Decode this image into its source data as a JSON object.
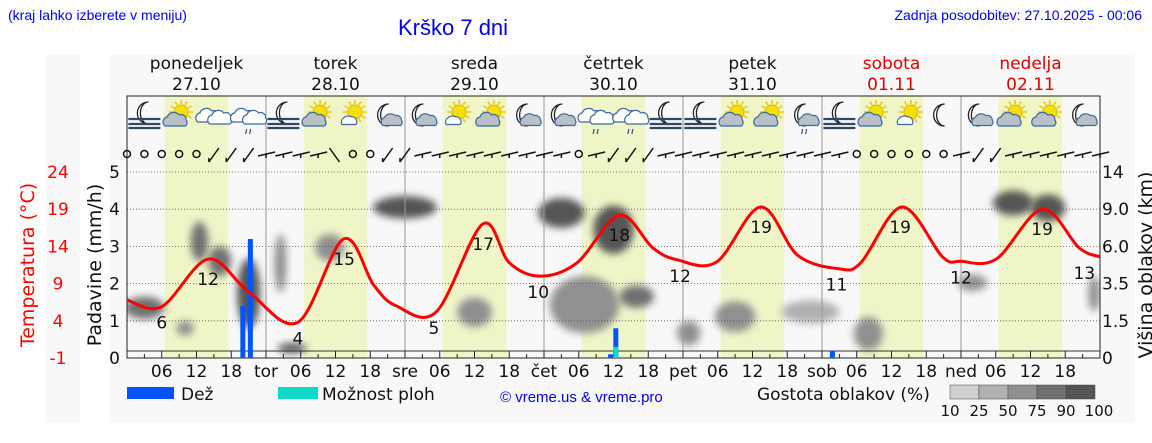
{
  "header": {
    "hint": "(kraj lahko izberete v meniju)",
    "title": "Krško 7 dni",
    "updated": "Zadnja posodobitev: 27.10.2025 - 00:06"
  },
  "days": [
    {
      "name": "ponedeljek",
      "date": "27.10",
      "weekend": false,
      "abbr": ""
    },
    {
      "name": "torek",
      "date": "28.10",
      "weekend": false,
      "abbr": "tor"
    },
    {
      "name": "sreda",
      "date": "29.10",
      "weekend": false,
      "abbr": "sre"
    },
    {
      "name": "četrtek",
      "date": "30.10",
      "weekend": false,
      "abbr": "čet"
    },
    {
      "name": "petek",
      "date": "31.10",
      "weekend": false,
      "abbr": "pet"
    },
    {
      "name": "sobota",
      "date": "01.11",
      "weekend": true,
      "abbr": "sob"
    },
    {
      "name": "nedelja",
      "date": "02.11",
      "weekend": true,
      "abbr": "ned"
    }
  ],
  "weather_icons": [
    "fog-night",
    "sun-cloud",
    "cloudy",
    "cloud-rain",
    "fog-night",
    "sun-cloud",
    "sun-small-cloud",
    "moon-cloud",
    "moon-cloud",
    "sun-small-cloud",
    "sun-cloud",
    "moon-cloud",
    "moon-cloud",
    "cloud-rain",
    "cloud-rain",
    "fog-night",
    "fog-night",
    "sun-cloud",
    "sun-cloud",
    "moon-cloud-rain",
    "fog-night",
    "sun-cloud",
    "sun-small-cloud",
    "moon",
    "moon-cloud",
    "sun-cloud",
    "sun-cloud",
    "moon-cloud"
  ],
  "wind": "cccccbbbwwwwnccbbwwwwwwwwwcwbbbwwwwwwwwwwwccccccwbbwwwwwwccbbbbbbbbbbbbbbbbbbbbbbb",
  "colors": {
    "temp": "#ff0000",
    "rain": "#0055ff",
    "showers": "#10d8c8",
    "day": "#f0f5c8",
    "weekend": "#dd0000",
    "link": "#0000ee"
  },
  "chart_data": {
    "type": "line",
    "title": "Krško 7 dni",
    "x_unit": "hours since 27.10 00:00",
    "xlim": [
      0,
      168
    ],
    "x_tick_labels": [
      "06",
      "12",
      "18"
    ],
    "y_left": {
      "label": "Padavine (mm/h)",
      "ticks": [
        "0",
        "1",
        "2",
        "3",
        "4",
        "5"
      ],
      "ylim": [
        0,
        5
      ]
    },
    "y_temp": {
      "label": "Temperatura (°C)",
      "ticks": [
        "-1",
        "4",
        "9",
        "14",
        "19",
        "24"
      ],
      "ylim": [
        -1,
        24
      ]
    },
    "y_right": {
      "label": "Višina oblakov (km)",
      "ticks": [
        "0",
        "1.5",
        "3.5",
        "6.0",
        "9.0",
        "14"
      ]
    },
    "temperature": {
      "x": [
        0,
        6,
        14,
        21,
        29.5,
        37.4,
        42.6,
        46.5,
        53.4,
        61.4,
        66,
        71.3,
        77.7,
        85,
        90.8,
        95,
        101.8,
        109.4,
        115.8,
        122.9,
        126.7,
        133.8,
        140.8,
        144,
        150.1,
        158,
        164.4,
        168
      ],
      "y": [
        6.8,
        5.9,
        12.3,
        7.9,
        3.8,
        15,
        8.8,
        6,
        5.2,
        17,
        11.8,
        10,
        11.8,
        18.2,
        13.8,
        12.2,
        11.9,
        19.3,
        12.8,
        11,
        11.8,
        19.3,
        12.6,
        12,
        12.3,
        19,
        13.8,
        12.6
      ]
    },
    "temp_labels": [
      {
        "x": 6,
        "v": "6"
      },
      {
        "x": 14,
        "v": "12"
      },
      {
        "x": 29.5,
        "v": "4"
      },
      {
        "x": 37.5,
        "v": "15"
      },
      {
        "x": 53,
        "v": "5"
      },
      {
        "x": 61.5,
        "v": "17"
      },
      {
        "x": 71,
        "v": "10"
      },
      {
        "x": 85,
        "v": "18"
      },
      {
        "x": 95.5,
        "v": "12"
      },
      {
        "x": 109.5,
        "v": "19"
      },
      {
        "x": 122.5,
        "v": "11"
      },
      {
        "x": 133.5,
        "v": "19"
      },
      {
        "x": 144,
        "v": "12"
      },
      {
        "x": 158,
        "v": "19"
      },
      {
        "x": 167,
        "v": "13"
      }
    ],
    "rain": [
      {
        "x": 20,
        "v": 1.4
      },
      {
        "x": 21.3,
        "v": 3.2
      },
      {
        "x": 83.5,
        "v": 0.1
      },
      {
        "x": 84.4,
        "v": 0.8
      },
      {
        "x": 121.8,
        "v": 0.2
      }
    ],
    "showers": [
      {
        "x": 84.4,
        "v": 0.3
      }
    ],
    "clouds": [
      {
        "x": 3,
        "km": 2.2,
        "w": 7,
        "hkm": 1.2,
        "d": 75
      },
      {
        "x": 10,
        "km": 1.2,
        "w": 3,
        "hkm": 0.6,
        "d": 50
      },
      {
        "x": 12.5,
        "km": 6.5,
        "w": 3,
        "hkm": 3,
        "d": 75
      },
      {
        "x": 16,
        "km": 5,
        "w": 4,
        "hkm": 2,
        "d": 75
      },
      {
        "x": 21,
        "km": 3.2,
        "w": 4,
        "hkm": 4,
        "d": 90
      },
      {
        "x": 26.5,
        "km": 5,
        "w": 2,
        "hkm": 4,
        "d": 50
      },
      {
        "x": 28.5,
        "km": 0.4,
        "w": 5,
        "hkm": 0.4,
        "d": 90
      },
      {
        "x": 35,
        "km": 6,
        "w": 5,
        "hkm": 2,
        "d": 50
      },
      {
        "x": 48,
        "km": 9.5,
        "w": 11,
        "hkm": 2.5,
        "d": 90
      },
      {
        "x": 60,
        "km": 2,
        "w": 6,
        "hkm": 1.5,
        "d": 50
      },
      {
        "x": 75,
        "km": 9,
        "w": 8,
        "hkm": 3,
        "d": 90
      },
      {
        "x": 84,
        "km": 7.5,
        "w": 7,
        "hkm": 4,
        "d": 90
      },
      {
        "x": 79,
        "km": 2.5,
        "w": 12,
        "hkm": 3,
        "d": 50
      },
      {
        "x": 88,
        "km": 2.8,
        "w": 6,
        "hkm": 1.2,
        "d": 75
      },
      {
        "x": 97,
        "km": 1,
        "w": 4,
        "hkm": 1,
        "d": 50
      },
      {
        "x": 105,
        "km": 1.8,
        "w": 7,
        "hkm": 1.5,
        "d": 50
      },
      {
        "x": 118,
        "km": 2,
        "w": 10,
        "hkm": 1.2,
        "d": 25
      },
      {
        "x": 128,
        "km": 1,
        "w": 5,
        "hkm": 1.4,
        "d": 50
      },
      {
        "x": 146,
        "km": 3.6,
        "w": 5,
        "hkm": 1,
        "d": 50
      },
      {
        "x": 153,
        "km": 10,
        "w": 7,
        "hkm": 3,
        "d": 90
      },
      {
        "x": 159,
        "km": 9.5,
        "w": 6,
        "hkm": 3,
        "d": 90
      },
      {
        "x": 167,
        "km": 3,
        "w": 2,
        "hkm": 2,
        "d": 50
      }
    ]
  },
  "legend": {
    "rain": "Dež",
    "showers": "Možnost ploh",
    "copyright": "© vreme.us & vreme.pro",
    "density_title": "Gostota oblakov (%)",
    "density_steps": [
      "10",
      "25",
      "50",
      "75",
      "90",
      "100"
    ],
    "density_colors": [
      "#d0d0d0",
      "#b0b0b0",
      "#909090",
      "#707070",
      "#555555"
    ]
  }
}
